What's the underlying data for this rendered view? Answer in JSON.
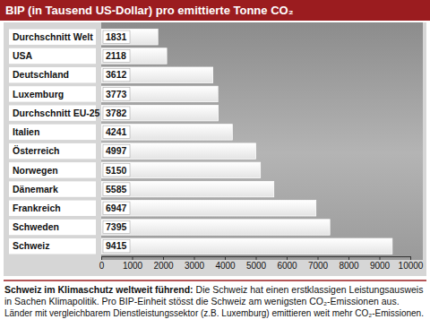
{
  "chart_data": {
    "type": "bar",
    "orientation": "horizontal",
    "title": "BIP (in Tausend US-Dollar) pro emittierte Tonne CO₂",
    "categories": [
      "Durchschnitt Welt",
      "USA",
      "Deutschland",
      "Luxemburg",
      "Durchschnitt EU-25",
      "Italien",
      "Österreich",
      "Norwegen",
      "Dänemark",
      "Frankreich",
      "Schweden",
      "Schweiz"
    ],
    "values": [
      1831,
      2118,
      3612,
      3773,
      3782,
      4241,
      4997,
      5150,
      5585,
      6947,
      7395,
      9415
    ],
    "color": "#e4e4e4",
    "xlim": [
      0,
      10000
    ],
    "xticks": [
      0,
      1000,
      2000,
      3000,
      4000,
      5000,
      6000,
      7000,
      8000,
      9000,
      10000
    ],
    "grid": false,
    "data_labels": true,
    "annotations": [
      "Schweiz im Klimaschutz weltweit führend:",
      "Die Schweiz hat einen erstklassigen Leistungsausweis",
      "in Sachen Klimapolitik. Pro BIP-Einheit stösst die Schweiz am wenigsten CO₂-Emissionen aus.",
      "Länder mit vergleichbarem Dienstleistungssektor (z.B. Luxemburg) emittieren weit mehr CO₂-Emissionen."
    ]
  }
}
